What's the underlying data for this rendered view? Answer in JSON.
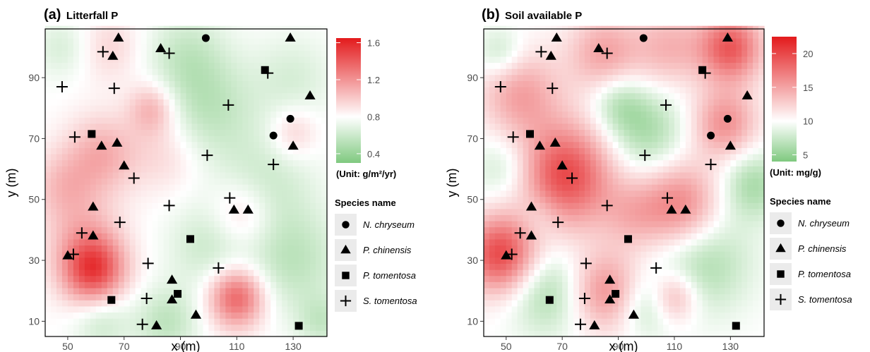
{
  "chart_data": [
    {
      "type": "heatmap",
      "panel_label": "(a)",
      "title": "Litterfall P",
      "xlabel": "x (m)",
      "ylabel": "y (m)",
      "xlim": [
        42,
        142
      ],
      "ylim": [
        5,
        106
      ],
      "xticks": [
        50,
        70,
        90,
        110,
        130
      ],
      "yticks": [
        10,
        30,
        50,
        70,
        90
      ],
      "colorbar": {
        "ticks": [
          0.4,
          0.8,
          1.2,
          1.6
        ],
        "range": [
          0.3,
          1.65
        ],
        "mid": 0.8,
        "unit_label": "(Unit: g/m²/yr)",
        "low_color": "#7fc97f",
        "mid_color": "#ffffff",
        "high_color": "#e31a1c"
      },
      "background": 0.8,
      "hotspots": [
        {
          "x": 59,
          "y": 27,
          "r": 8,
          "v": 1.5
        },
        {
          "x": 110,
          "y": 18,
          "r": 7,
          "v": 1.4
        },
        {
          "x": 80,
          "y": 80,
          "r": 6,
          "v": 1.1
        },
        {
          "x": 62,
          "y": 65,
          "r": 9,
          "v": 1.1
        },
        {
          "x": 48,
          "y": 55,
          "r": 8,
          "v": 1.0
        },
        {
          "x": 55,
          "y": 40,
          "r": 10,
          "v": 1.0
        },
        {
          "x": 112,
          "y": 45,
          "r": 8,
          "v": 1.05
        },
        {
          "x": 130,
          "y": 72,
          "r": 6,
          "v": 1.0
        },
        {
          "x": 85,
          "y": 65,
          "r": 9,
          "v": 0.95
        },
        {
          "x": 65,
          "y": 100,
          "r": 8,
          "v": 0.95
        },
        {
          "x": 100,
          "y": 80,
          "r": 12,
          "v": 0.55
        },
        {
          "x": 92,
          "y": 98,
          "r": 10,
          "v": 0.6
        },
        {
          "x": 120,
          "y": 55,
          "r": 12,
          "v": 0.6
        },
        {
          "x": 100,
          "y": 35,
          "r": 10,
          "v": 0.6
        },
        {
          "x": 130,
          "y": 30,
          "r": 12,
          "v": 0.55
        },
        {
          "x": 85,
          "y": 10,
          "r": 8,
          "v": 0.55
        },
        {
          "x": 62,
          "y": 10,
          "r": 7,
          "v": 0.6
        },
        {
          "x": 130,
          "y": 90,
          "r": 10,
          "v": 0.65
        },
        {
          "x": 48,
          "y": 100,
          "r": 7,
          "v": 0.65
        },
        {
          "x": 140,
          "y": 10,
          "r": 6,
          "v": 0.6
        }
      ]
    },
    {
      "type": "heatmap",
      "panel_label": "(b)",
      "title": "Soil available P",
      "xlabel": "x (m)",
      "ylabel": "y (m)",
      "xlim": [
        42,
        142
      ],
      "ylim": [
        5,
        106
      ],
      "xticks": [
        50,
        70,
        90,
        110,
        130
      ],
      "yticks": [
        10,
        30,
        50,
        70,
        90
      ],
      "colorbar": {
        "ticks": [
          5,
          10,
          15,
          20
        ],
        "range": [
          4,
          22.5
        ],
        "mid": 10,
        "unit_label": "(Unit: mg/g)",
        "low_color": "#7fc97f",
        "mid_color": "#ffffff",
        "high_color": "#e31a1c"
      },
      "background": 10,
      "hotspots": [
        {
          "x": 71,
          "y": 58,
          "r": 12,
          "v": 20
        },
        {
          "x": 48,
          "y": 32,
          "r": 9,
          "v": 20
        },
        {
          "x": 112,
          "y": 48,
          "r": 10,
          "v": 17
        },
        {
          "x": 130,
          "y": 100,
          "r": 8,
          "v": 19
        },
        {
          "x": 128,
          "y": 75,
          "r": 8,
          "v": 16
        },
        {
          "x": 85,
          "y": 20,
          "r": 9,
          "v": 16
        },
        {
          "x": 55,
          "y": 85,
          "r": 10,
          "v": 15
        },
        {
          "x": 85,
          "y": 98,
          "r": 9,
          "v": 15
        },
        {
          "x": 108,
          "y": 100,
          "r": 9,
          "v": 14
        },
        {
          "x": 110,
          "y": 18,
          "r": 6,
          "v": 15
        },
        {
          "x": 95,
          "y": 45,
          "r": 8,
          "v": 13
        },
        {
          "x": 100,
          "y": 72,
          "r": 10,
          "v": 6
        },
        {
          "x": 120,
          "y": 30,
          "r": 12,
          "v": 6
        },
        {
          "x": 65,
          "y": 20,
          "r": 10,
          "v": 6
        },
        {
          "x": 50,
          "y": 60,
          "r": 8,
          "v": 7
        },
        {
          "x": 90,
          "y": 82,
          "r": 7,
          "v": 7
        },
        {
          "x": 138,
          "y": 55,
          "r": 8,
          "v": 6
        },
        {
          "x": 100,
          "y": 15,
          "r": 7,
          "v": 7
        },
        {
          "x": 48,
          "y": 98,
          "r": 6,
          "v": 7
        },
        {
          "x": 62,
          "y": 45,
          "r": 6,
          "v": 8
        }
      ]
    }
  ],
  "legend": {
    "title": "Species name",
    "entries": [
      {
        "label": "N. chryseum",
        "shape": "circle"
      },
      {
        "label": "P. chinensis",
        "shape": "triangle"
      },
      {
        "label": "P. tomentosa",
        "shape": "square"
      },
      {
        "label": "S. tomentosa",
        "shape": "cross"
      }
    ]
  },
  "points": [
    {
      "species": "N. chryseum",
      "x": 99,
      "y": 103
    },
    {
      "species": "N. chryseum",
      "x": 129,
      "y": 76.5
    },
    {
      "species": "N. chryseum",
      "x": 123,
      "y": 71
    },
    {
      "species": "P. chinensis",
      "x": 68,
      "y": 103
    },
    {
      "species": "P. chinensis",
      "x": 129,
      "y": 103
    },
    {
      "species": "P. chinensis",
      "x": 83,
      "y": 99.5
    },
    {
      "species": "P. chinensis",
      "x": 66,
      "y": 97
    },
    {
      "species": "P. chinensis",
      "x": 136,
      "y": 84
    },
    {
      "species": "P. chinensis",
      "x": 130,
      "y": 67.5
    },
    {
      "species": "P. chinensis",
      "x": 67.5,
      "y": 68.5
    },
    {
      "species": "P. chinensis",
      "x": 62,
      "y": 67.5
    },
    {
      "species": "P. chinensis",
      "x": 70,
      "y": 61
    },
    {
      "species": "P. chinensis",
      "x": 59,
      "y": 47.5
    },
    {
      "species": "P. chinensis",
      "x": 109,
      "y": 46.5
    },
    {
      "species": "P. chinensis",
      "x": 114,
      "y": 46.5
    },
    {
      "species": "P. chinensis",
      "x": 59,
      "y": 38
    },
    {
      "species": "P. chinensis",
      "x": 50,
      "y": 31.5
    },
    {
      "species": "P. chinensis",
      "x": 87,
      "y": 23.5
    },
    {
      "species": "P. chinensis",
      "x": 87,
      "y": 17
    },
    {
      "species": "P. chinensis",
      "x": 95.5,
      "y": 12
    },
    {
      "species": "P. chinensis",
      "x": 81.5,
      "y": 8.5
    },
    {
      "species": "P. tomentosa",
      "x": 120,
      "y": 92.5
    },
    {
      "species": "P. tomentosa",
      "x": 58.5,
      "y": 71.5
    },
    {
      "species": "P. tomentosa",
      "x": 93.5,
      "y": 37
    },
    {
      "species": "P. tomentosa",
      "x": 89,
      "y": 19
    },
    {
      "species": "P. tomentosa",
      "x": 65.5,
      "y": 17
    },
    {
      "species": "P. tomentosa",
      "x": 132,
      "y": 8.5
    },
    {
      "species": "S. tomentosa",
      "x": 62.5,
      "y": 98.5
    },
    {
      "species": "S. tomentosa",
      "x": 86,
      "y": 98
    },
    {
      "species": "S. tomentosa",
      "x": 121,
      "y": 91.5
    },
    {
      "species": "S. tomentosa",
      "x": 48,
      "y": 87
    },
    {
      "species": "S. tomentosa",
      "x": 66.5,
      "y": 86.5
    },
    {
      "species": "S. tomentosa",
      "x": 107,
      "y": 81
    },
    {
      "species": "S. tomentosa",
      "x": 52.5,
      "y": 70.5
    },
    {
      "species": "S. tomentosa",
      "x": 99.5,
      "y": 64.5
    },
    {
      "species": "S. tomentosa",
      "x": 123,
      "y": 61.5
    },
    {
      "species": "S. tomentosa",
      "x": 73.5,
      "y": 57
    },
    {
      "species": "S. tomentosa",
      "x": 107.5,
      "y": 50.5
    },
    {
      "species": "S. tomentosa",
      "x": 86,
      "y": 48
    },
    {
      "species": "S. tomentosa",
      "x": 68.5,
      "y": 42.5
    },
    {
      "species": "S. tomentosa",
      "x": 55,
      "y": 39
    },
    {
      "species": "S. tomentosa",
      "x": 52,
      "y": 32
    },
    {
      "species": "S. tomentosa",
      "x": 78.5,
      "y": 29
    },
    {
      "species": "S. tomentosa",
      "x": 103.5,
      "y": 27.5
    },
    {
      "species": "S. tomentosa",
      "x": 78,
      "y": 17.5
    },
    {
      "species": "S. tomentosa",
      "x": 76.5,
      "y": 9
    }
  ]
}
